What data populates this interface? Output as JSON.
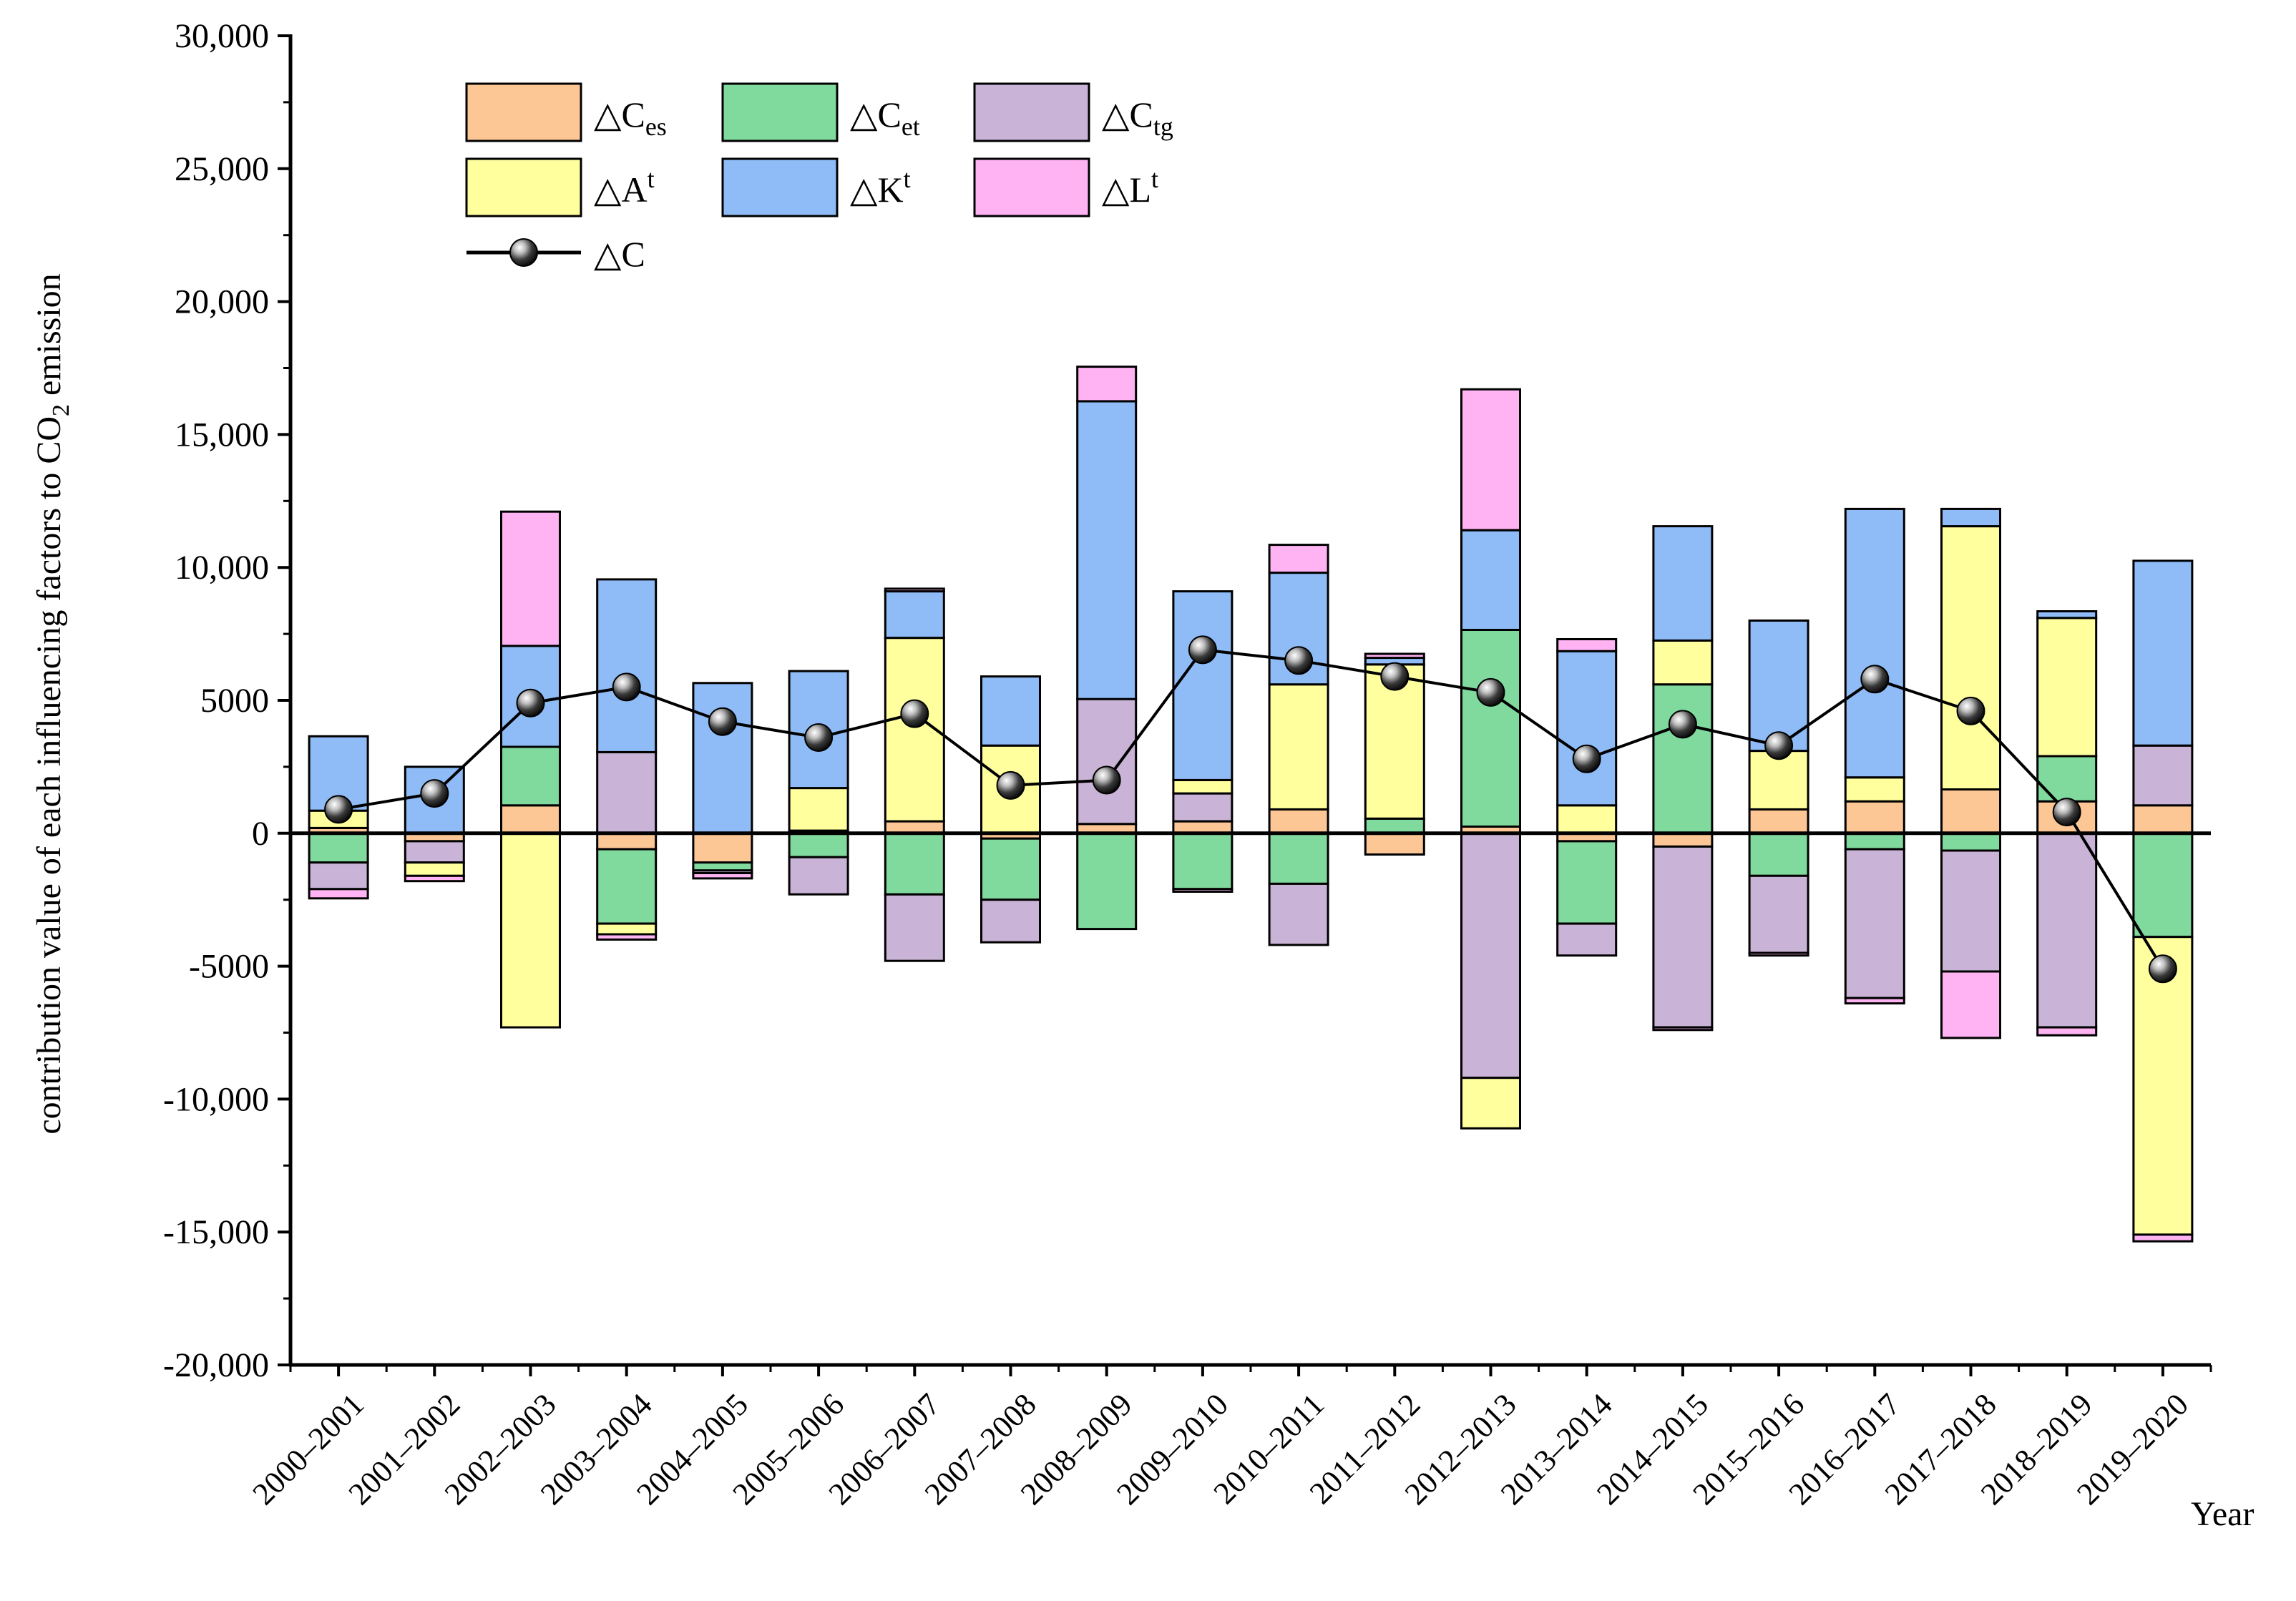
{
  "chart_data": {
    "type": "bar",
    "stacked": true,
    "ylabel": {
      "pre": "contribution value of each influencing factors to CO",
      "sub": "2",
      "post": " emission"
    },
    "xlabel": "Year",
    "ylim": [
      -20000,
      30000
    ],
    "y_ticks": [
      {
        "value": 30000,
        "label": "30,000"
      },
      {
        "value": 25000,
        "label": "25,000"
      },
      {
        "value": 20000,
        "label": "20,000"
      },
      {
        "value": 15000,
        "label": "15,000"
      },
      {
        "value": 10000,
        "label": "10,000"
      },
      {
        "value": 5000,
        "label": "5000"
      },
      {
        "value": 0,
        "label": "0"
      },
      {
        "value": -5000,
        "label": "-5000"
      },
      {
        "value": -10000,
        "label": "-10,000"
      },
      {
        "value": -15000,
        "label": "-15,000"
      },
      {
        "value": -20000,
        "label": "-20,000"
      }
    ],
    "legend_position": "top-left",
    "categories": [
      "2000–2001",
      "2001–2002",
      "2002–2003",
      "2003–2004",
      "2004–2005",
      "2005–2006",
      "2006–2007",
      "2007–2008",
      "2008–2009",
      "2009–2010",
      "2010–2011",
      "2011–2012",
      "2012–2013",
      "2013–2014",
      "2014–2015",
      "2015–2016",
      "2016–2017",
      "2017–2018",
      "2018–2019",
      "2019–2020"
    ],
    "series": [
      {
        "key": "ces",
        "name": "△C",
        "sub": "es",
        "sup": "",
        "color": "#fdc795",
        "values": [
          200,
          -300,
          1050,
          -600,
          -1100,
          100,
          450,
          -200,
          350,
          450,
          900,
          -800,
          250,
          -300,
          -500,
          900,
          1200,
          1650,
          1200,
          1050
        ]
      },
      {
        "key": "cet",
        "name": "△C",
        "sub": "et",
        "sup": "",
        "color": "#80d99d",
        "values": [
          -1100,
          0,
          2200,
          -2800,
          -300,
          -900,
          -2300,
          -2300,
          -3600,
          -2100,
          -1900,
          550,
          7400,
          -3100,
          5600,
          -1600,
          -600,
          -650,
          1700,
          -3900
        ]
      },
      {
        "key": "ctg",
        "name": "△C",
        "sub": "tg",
        "sup": "",
        "color": "#c9b3d6",
        "values": [
          -1000,
          -800,
          0,
          3050,
          -100,
          -1400,
          -2500,
          -1600,
          4700,
          1050,
          -2300,
          0,
          -9200,
          -1200,
          -6800,
          -2900,
          -5600,
          -4550,
          -7300,
          2250
        ]
      },
      {
        "key": "at",
        "name": "△A",
        "sub": "",
        "sup": "t",
        "color": "#ffff9e",
        "values": [
          650,
          -500,
          -7300,
          -400,
          0,
          1600,
          6900,
          3300,
          0,
          500,
          4700,
          5800,
          -1900,
          1050,
          1650,
          2200,
          900,
          9900,
          5200,
          -11200
        ]
      },
      {
        "key": "kt",
        "name": "△K",
        "sub": "",
        "sup": "t",
        "color": "#8fbcf6",
        "values": [
          2800,
          2500,
          3800,
          6500,
          5650,
          4400,
          1750,
          2600,
          11200,
          7100,
          4200,
          250,
          3750,
          5800,
          4300,
          4900,
          10100,
          650,
          250,
          6950
        ]
      },
      {
        "key": "lt",
        "name": "△L",
        "sub": "",
        "sup": "t",
        "color": "#ffb3f3",
        "values": [
          -350,
          -200,
          5050,
          -200,
          -200,
          0,
          100,
          0,
          1300,
          -100,
          1050,
          150,
          5300,
          450,
          -100,
          -100,
          -200,
          -2500,
          -300,
          -250
        ]
      }
    ],
    "delta_c": {
      "name": "△C",
      "values": [
        900,
        1500,
        4900,
        5500,
        4200,
        3600,
        4500,
        1800,
        2000,
        6900,
        6500,
        5900,
        5300,
        2800,
        4100,
        3300,
        5800,
        4600,
        800,
        -5100
      ]
    }
  }
}
